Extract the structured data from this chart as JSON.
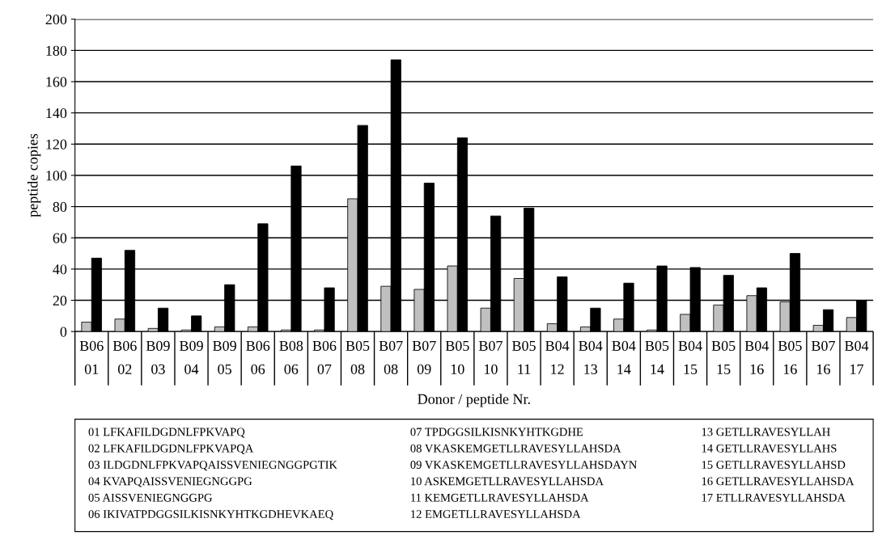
{
  "chart_data": {
    "type": "bar",
    "xlabel": "Donor / peptide Nr.",
    "ylabel": "peptide copies",
    "categories": [
      "B06\n01",
      "B06\n02",
      "B09\n03",
      "B09\n04",
      "B09\n05",
      "B06\n06",
      "B08\n06",
      "B06\n07",
      "B05\n08",
      "B07\n08",
      "B07\n09",
      "B05\n10",
      "B07\n10",
      "B05\n11",
      "B04\n12",
      "B04\n13",
      "B04\n14",
      "B05\n14",
      "B04\n15",
      "B05\n15",
      "B04\n16",
      "B05\n16",
      "B07\n16",
      "B04\n17"
    ],
    "series": [
      {
        "color": "#c0c0c0",
        "values": [
          6,
          8,
          2,
          1,
          3,
          3,
          1,
          1,
          85,
          29,
          27,
          42,
          15,
          34,
          5,
          3,
          8,
          1,
          11,
          17,
          23,
          19,
          4,
          9
        ]
      },
      {
        "color": "#000000",
        "values": [
          47,
          52,
          15,
          10,
          30,
          69,
          106,
          28,
          132,
          174,
          95,
          124,
          74,
          79,
          35,
          15,
          31,
          42,
          41,
          36,
          28,
          50,
          14,
          20
        ]
      }
    ],
    "ylim": [
      0,
      200
    ],
    "yticks": [
      0,
      20,
      40,
      60,
      80,
      100,
      120,
      140,
      160,
      180,
      200
    ],
    "grid": "y",
    "legend": false,
    "annotations": [
      "01 LFKAFILDGDNLFPKVAPQ",
      "02 LFKAFILDGDNLFPKVAPQA",
      "03 ILDGDNLFPKVAPQAISSVENIEGNGGPGTIK",
      "04 KVAPQAISSVENIEGNGGPG",
      "05 AISSVENIEGNGGPG",
      "06 IKIVATPDGGSILKISNKYHTKGDHEVKAEQ",
      "07 TPDGGSILKISNKYHTKGDHE",
      "08 VKASKEMGETLLRAVESYLLAHSDA",
      "09 VKASKEMGETLLRAVESYLLAHSDAYN",
      "10 ASKEMGETLLRAVESYLLAHSDA",
      "11 KEMGETLLRAVESYLLAHSDA",
      "12 EMGETLLRAVESYLLAHSDA",
      "13 GETLLRAVESYLLAH",
      "14 GETLLRAVESYLLAHS",
      "15 GETLLRAVESYLLAHSD",
      "16 GETLLRAVESYLLAHSDA",
      "17 ETLLRAVESYLLAHSDA"
    ]
  }
}
